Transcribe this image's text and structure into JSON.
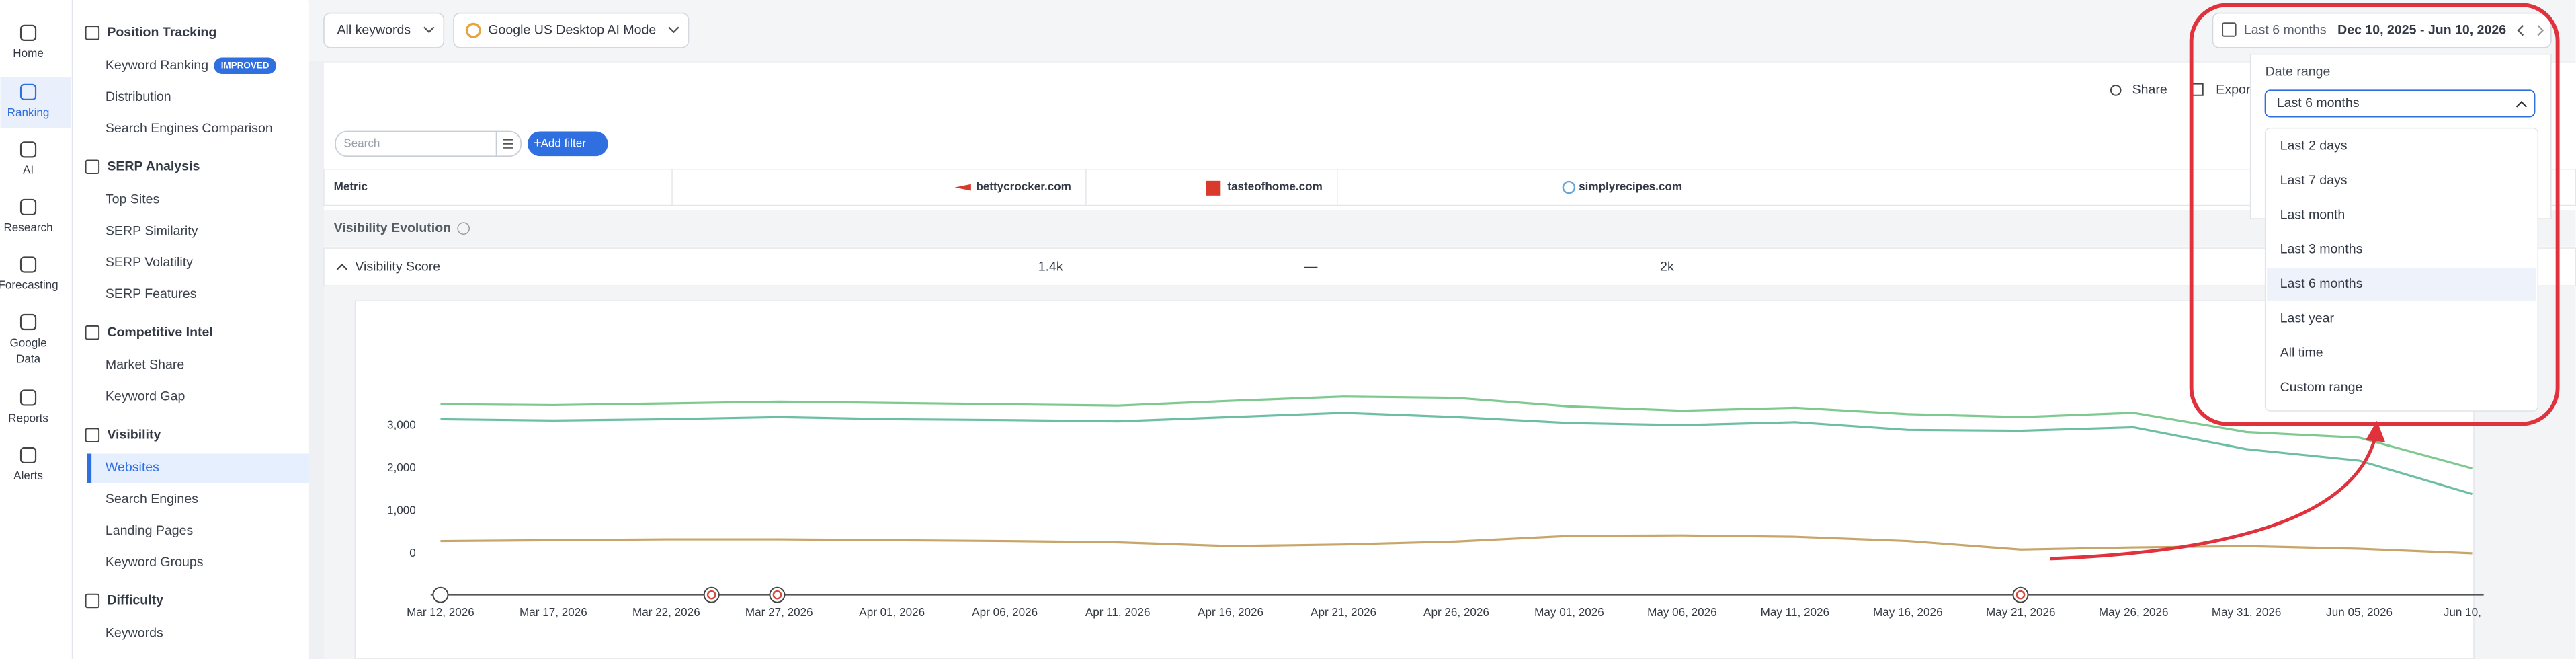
{
  "rail": [
    [
      "Home"
    ],
    [
      "Ranking"
    ],
    [
      "AI"
    ],
    [
      "Research"
    ],
    [
      "Forecasting"
    ],
    [
      "Google",
      "Data"
    ],
    [
      "Reports"
    ],
    [
      "Alerts"
    ]
  ],
  "sidebar": [
    {
      "title": "Position Tracking",
      "items": [
        "Keyword Ranking",
        "Distribution",
        "Search Engines Comparison"
      ],
      "badge": "IMPROVED"
    },
    {
      "title": "SERP Analysis",
      "items": [
        "Top Sites",
        "SERP Similarity",
        "SERP Volatility",
        "SERP Features"
      ]
    },
    {
      "title": "Competitive Intel",
      "items": [
        "Market Share",
        "Keyword Gap"
      ]
    },
    {
      "title": "Visibility",
      "items": [
        "Websites",
        "Search Engines",
        "Landing Pages",
        "Keyword Groups"
      ]
    },
    {
      "title": "Difficulty",
      "items": [
        "Keywords"
      ]
    }
  ],
  "toolbar": {
    "keywords": "All keywords",
    "engine": "Google US Desktop AI Mode",
    "date_preset": "Last 6 months",
    "date_range": "Dec 10, 2025 - Jun 10, 2026"
  },
  "actions": [
    "Share",
    "Export"
  ],
  "search_placeholder": "Search",
  "add_filter": "Add filter",
  "table": {
    "header": [
      "Metric",
      "bettycrocker.com",
      "tasteofhome.com",
      "simplyrecipes.com"
    ],
    "section": "Visibility Evolution",
    "rows": [
      [
        "Visibility Score",
        "1.4k",
        "—",
        "2k"
      ]
    ]
  },
  "chart": {
    "type": "line",
    "categories": [
      "Mar 12, 2026",
      "Mar 17, 2026",
      "Mar 22, 2026",
      "Mar 27, 2026",
      "Apr 01, 2026",
      "Apr 06, 2026",
      "Apr 11, 2026",
      "Apr 16, 2026",
      "Apr 21, 2026",
      "Apr 26, 2026",
      "May 01, 2026",
      "May 06, 2026",
      "May 11, 2026",
      "May 16, 2026",
      "May 21, 2026",
      "May 26, 2026",
      "May 31, 2026",
      "Jun 05, 2026",
      "Jun 10,"
    ],
    "ylim": [
      -1000,
      4000
    ],
    "yticks": [
      0,
      {
        "value": 1000,
        "label": "1,000"
      },
      {
        "value": 2000,
        "label": "2,000"
      },
      {
        "value": 3000,
        "label": "3,000"
      }
    ],
    "series": [
      {
        "color": "#7ec98f",
        "values": [
          3500,
          3480,
          3520,
          3560,
          3530,
          3500,
          3470,
          3580,
          3680,
          3650,
          3450,
          3350,
          3420,
          3270,
          3200,
          3300,
          2850,
          2720,
          2000
        ]
      },
      {
        "color": "#6dbfa4",
        "values": [
          3150,
          3120,
          3150,
          3200,
          3150,
          3130,
          3100,
          3200,
          3300,
          3200,
          3060,
          3010,
          3080,
          2900,
          2880,
          2960,
          2450,
          2180,
          1400
        ]
      },
      {
        "color": "#c8a66b",
        "values": [
          300,
          320,
          340,
          340,
          320,
          300,
          270,
          180,
          220,
          290,
          420,
          430,
          400,
          300,
          100,
          150,
          180,
          120,
          10
        ]
      }
    ]
  },
  "date_dropdown": {
    "label": "Date range",
    "selected": "Last 6 months",
    "options": [
      "Last 2 days",
      "Last 7 days",
      "Last month",
      "Last 3 months",
      "Last 6 months",
      "Last year",
      "All time",
      "Custom range"
    ]
  }
}
